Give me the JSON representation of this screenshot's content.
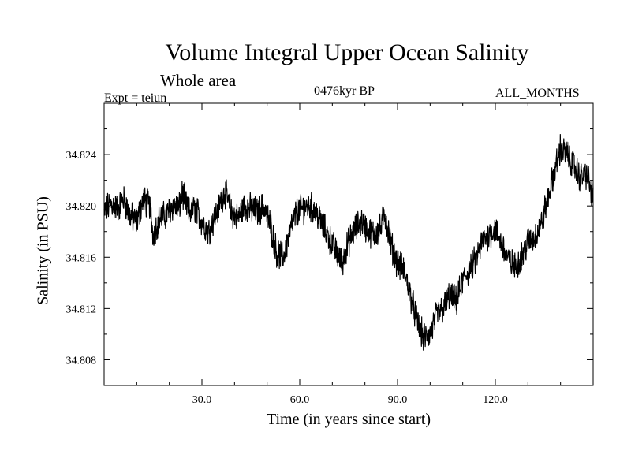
{
  "chart_data": {
    "type": "line",
    "title": "Volume Integral Upper Ocean Salinity",
    "subtitle": "Whole area",
    "annotations": {
      "experiment": "Expt = teiun",
      "period": "0476kyr BP",
      "months": "ALL_MONTHS"
    },
    "xlabel": "Time (in years since start)",
    "ylabel": "Salinity (in PSU)",
    "xlim": [
      0,
      150
    ],
    "ylim": [
      34.806,
      34.828
    ],
    "x_ticks": [
      30,
      60,
      90,
      120
    ],
    "x_tick_labels": [
      "30.0",
      "60.0",
      "90.0",
      "120.0"
    ],
    "y_ticks": [
      34.808,
      34.812,
      34.816,
      34.82,
      34.824
    ],
    "y_tick_labels": [
      "34.808",
      "34.812",
      "34.816",
      "34.820",
      "34.824"
    ],
    "grid": false,
    "line_color": "#000000",
    "series": [
      {
        "name": "Salinity",
        "x": [
          0,
          2,
          4,
          6,
          8,
          10,
          12,
          14,
          15,
          17,
          19,
          21,
          23,
          24,
          26,
          28,
          30,
          32,
          34,
          35,
          37,
          39,
          41,
          43,
          45,
          47,
          49,
          51,
          53,
          55,
          57,
          59,
          61,
          63,
          65,
          67,
          69,
          71,
          73,
          75,
          77,
          79,
          81,
          83,
          85,
          86,
          88,
          90,
          92,
          94,
          96,
          98,
          100,
          102,
          104,
          106,
          108,
          110,
          112,
          114,
          116,
          118,
          120,
          122,
          124,
          126,
          128,
          130,
          132,
          134,
          136,
          138,
          140,
          142,
          144,
          146,
          148,
          150
        ],
        "values": [
          34.8195,
          34.8202,
          34.8198,
          34.8205,
          34.8192,
          34.8188,
          34.8205,
          34.82,
          34.8178,
          34.819,
          34.8193,
          34.82,
          34.8198,
          34.821,
          34.8195,
          34.8198,
          34.8188,
          34.818,
          34.8192,
          34.8198,
          34.8212,
          34.8195,
          34.819,
          34.82,
          34.8198,
          34.8195,
          34.82,
          34.8185,
          34.8163,
          34.816,
          34.818,
          34.8195,
          34.8198,
          34.82,
          34.8195,
          34.8185,
          34.8175,
          34.8165,
          34.8155,
          34.8172,
          34.8182,
          34.8188,
          34.818,
          34.8178,
          34.8183,
          34.8195,
          34.817,
          34.8155,
          34.815,
          34.813,
          34.811,
          34.8097,
          34.81,
          34.8115,
          34.812,
          34.813,
          34.8125,
          34.8142,
          34.815,
          34.8158,
          34.8172,
          34.8178,
          34.8182,
          34.817,
          34.8158,
          34.8152,
          34.816,
          34.8172,
          34.8175,
          34.8185,
          34.8205,
          34.8225,
          34.8245,
          34.824,
          34.8232,
          34.8222,
          34.8225,
          34.8205
        ]
      }
    ]
  }
}
